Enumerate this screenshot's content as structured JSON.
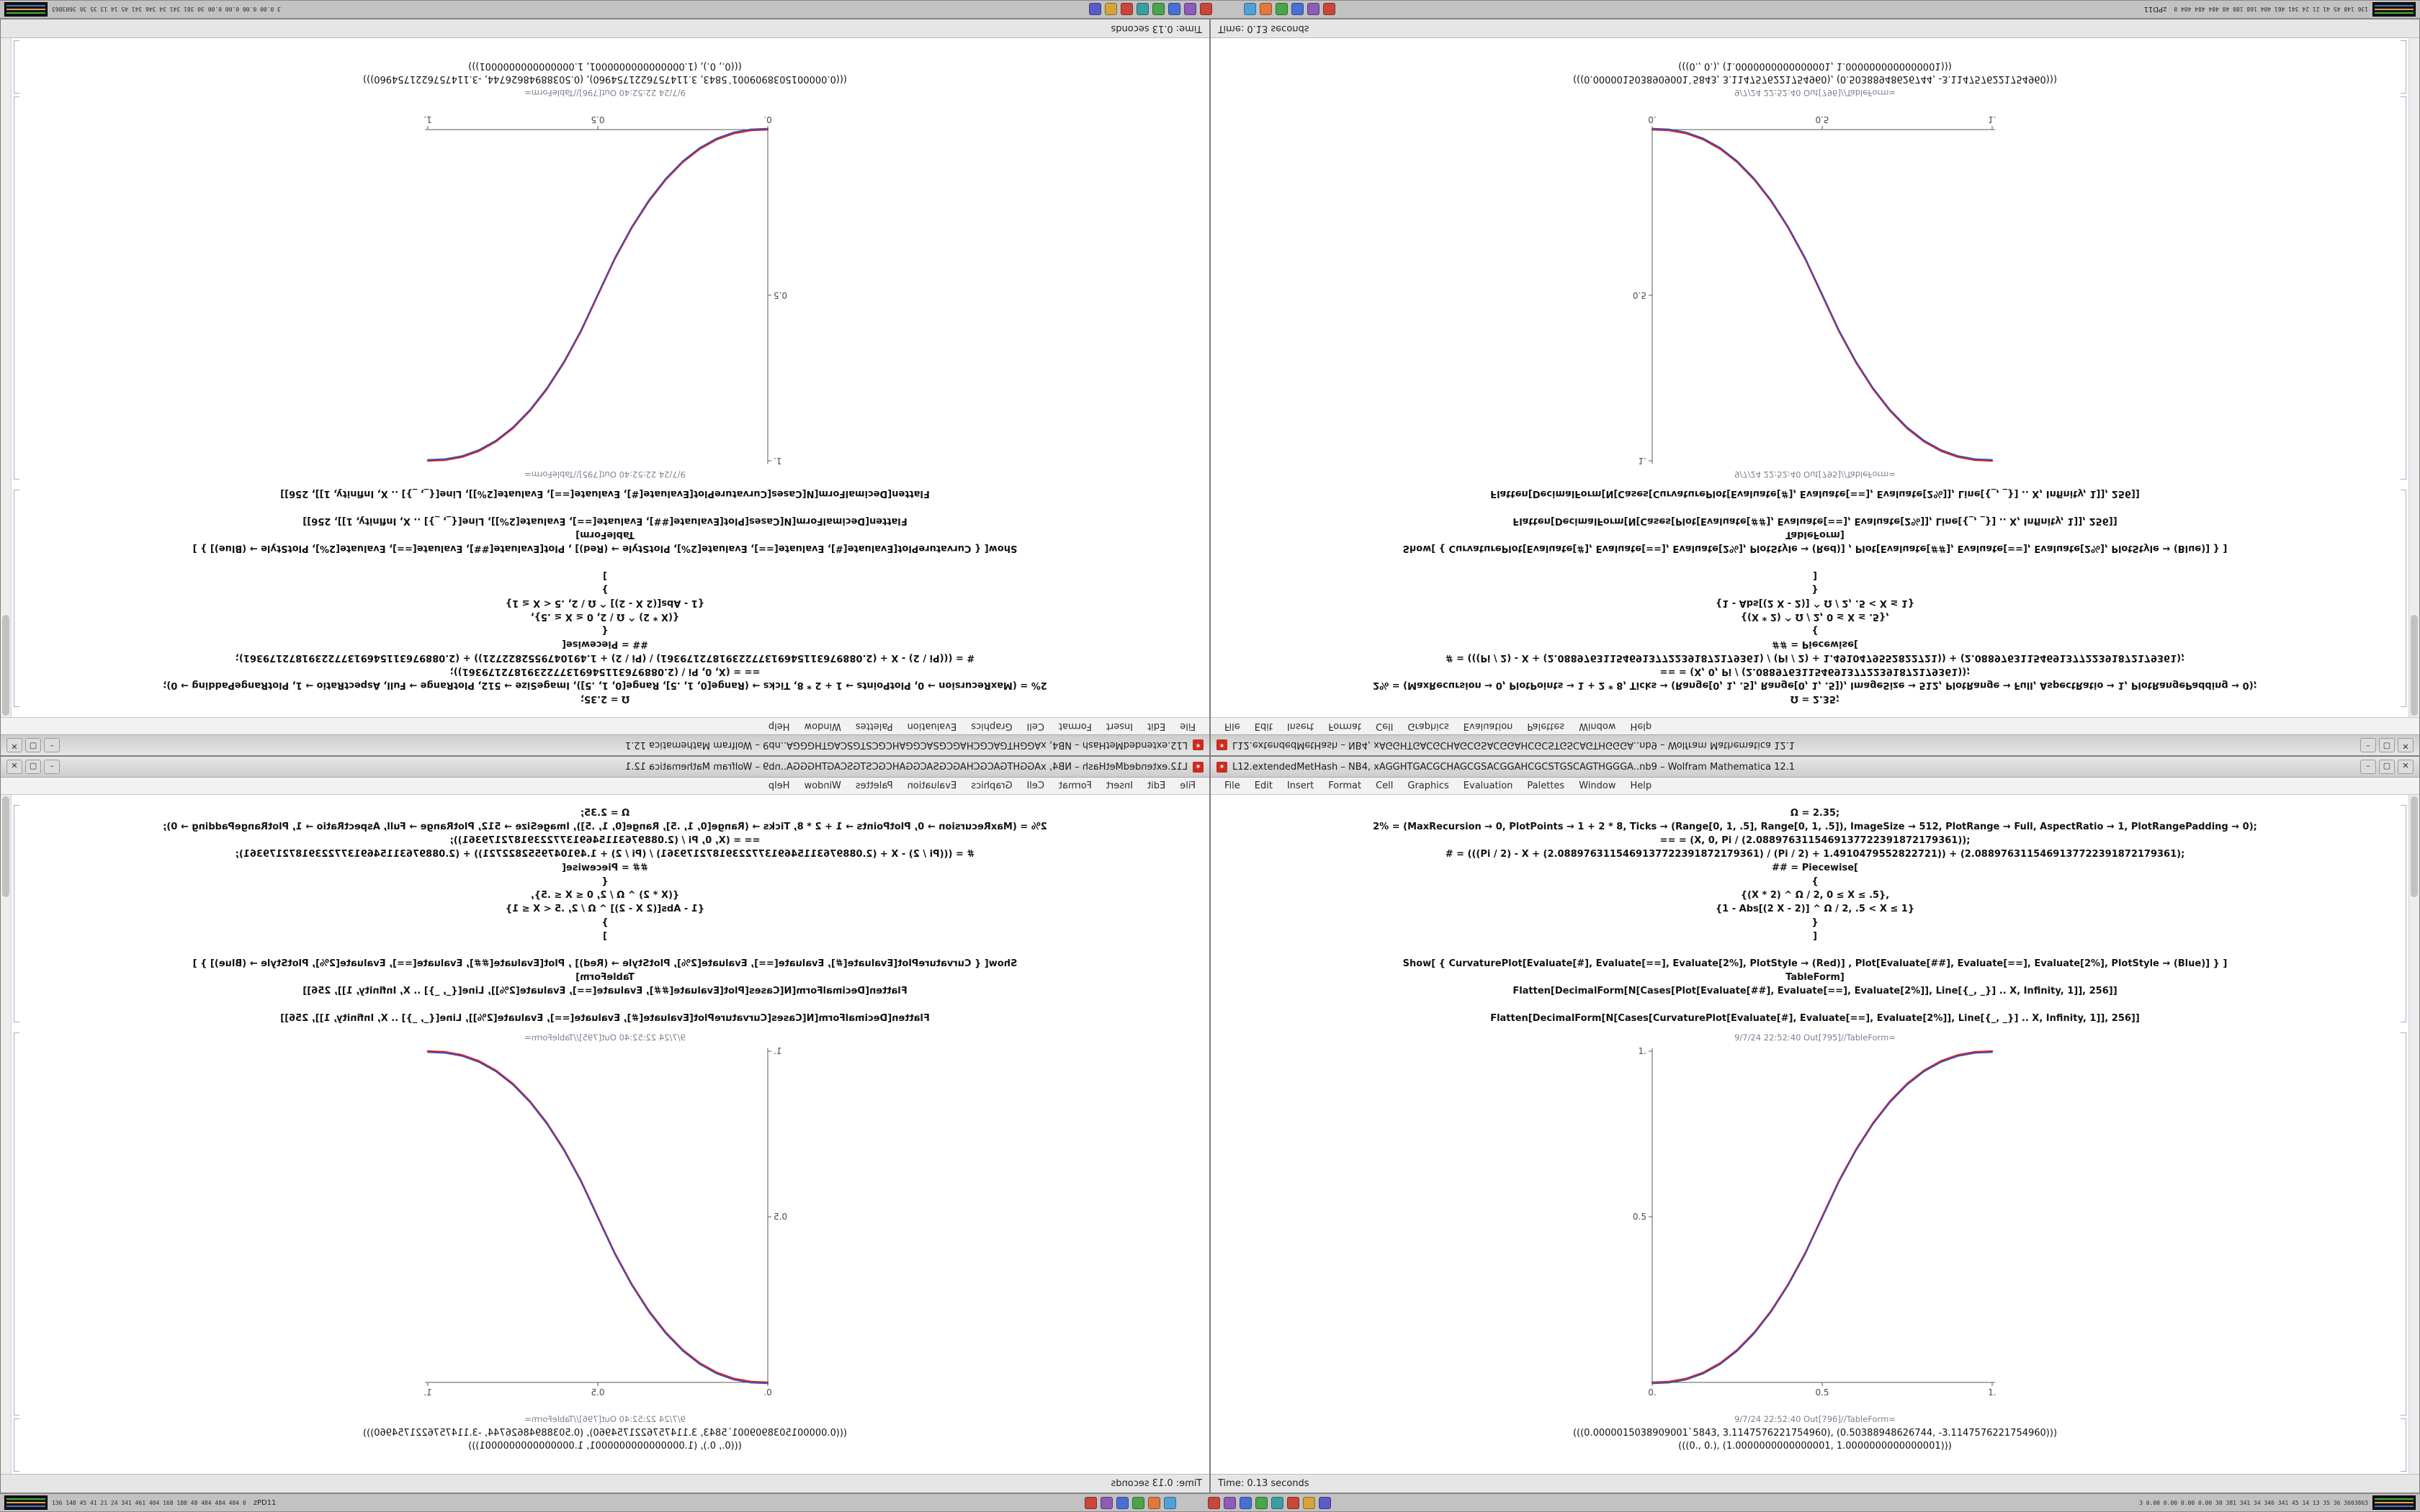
{
  "desktop": {
    "background": "#9a9a9a"
  },
  "taskbar": {
    "background": "#c2c2c2",
    "workspace_label": "zPD11",
    "left_stats": "136 148 45 41 21 24 341 461 404 168 188 48 484 484 484 0",
    "right_stats": "3 0.00 0.00 0.00 0.00 30 381 341 34 346 341 45 14 13 35 36 3603863",
    "app_icons_left": [
      {
        "name": "app-icon-red",
        "color": "#c9463b"
      },
      {
        "name": "app-icon-purple",
        "color": "#8e5bb8"
      },
      {
        "name": "app-icon-blue",
        "color": "#4a6fd4"
      },
      {
        "name": "app-icon-green",
        "color": "#4aa44a"
      },
      {
        "name": "app-icon-orange",
        "color": "#e0783c"
      },
      {
        "name": "app-icon-lightblue",
        "color": "#52a0d8"
      }
    ],
    "app_icons_right": [
      {
        "name": "app-icon-red-2",
        "color": "#c9463b"
      },
      {
        "name": "app-icon-purple-2",
        "color": "#8e5bb8"
      },
      {
        "name": "app-icon-blue-2",
        "color": "#4a6fd4"
      },
      {
        "name": "app-icon-green-2",
        "color": "#4aa44a"
      },
      {
        "name": "app-icon-teal",
        "color": "#3c9ea0"
      },
      {
        "name": "app-icon-red-3",
        "color": "#c9463b"
      },
      {
        "name": "app-icon-yellow",
        "color": "#d4a43c"
      },
      {
        "name": "app-icon-indigo",
        "color": "#5b5bc8"
      }
    ]
  },
  "window": {
    "title": "L12.extendedMetHash – NB4, xAGGHTGACGCHAGCGSACGGAHCGCSTGSCAGTHGGGA..nb9 – Wolfram Mathematica 12.1",
    "controls": {
      "minimize": "–",
      "maximize": "▢",
      "close": "✕"
    },
    "menus": [
      "File",
      "Edit",
      "Insert",
      "Format",
      "Cell",
      "Graphics",
      "Evaluation",
      "Palettes",
      "Window",
      "Help"
    ],
    "status": "Time: 0.13 seconds",
    "cells": {
      "input_lines": [
        "Ω = 2.35;",
        "2% = (MaxRecursion → 0, PlotPoints → 1 + 2 * 8, Ticks → (Range[0, 1, .5], Range[0, 1, .5]), ImageSize → 512, PlotRange → Full, AspectRatio → 1, PlotRangePadding → 0);",
        "== = (X, 0, Pi / (2.0889763115469137722391872179361));",
        "# = (((Pi / 2) - X + (2.0889763115469137722391872179361) / (Pi / 2) + 1.4910479552822721)) + (2.0889763115469137722391872179361);",
        "## = Piecewise[",
        "{",
        "{(X * 2) ^ Ω / 2, 0 ≤ X ≤ .5},",
        "{1 - Abs[(2 X - 2)] ^ Ω / 2, .5 < X ≤ 1}",
        "}",
        "]",
        "",
        "Show[ { CurvaturePlot[Evaluate[#], Evaluate[==], Evaluate[2%], PlotStyle → (Red)] , Plot[Evaluate[##], Evaluate[==], Evaluate[2%], PlotStyle → (Blue)] } ]",
        "TableForm]",
        "Flatten[DecimalForm[N[Cases[Plot[Evaluate[##], Evaluate[==], Evaluate[2%]], Line[{_, _}] .. X, Infinity, 1]], 256]]",
        "",
        "Flatten[DecimalForm[N[Cases[CurvaturePlot[Evaluate[#], Evaluate[==], Evaluate[2%]], Line[{_, _}] .. X, Infinity, 1]], 256]]"
      ],
      "out_label_plot": "9/7/24 22:52:40 Out[795]//TableForm=",
      "out_label_table": "9/7/24 22:52:40 Out[796]//TableForm=",
      "output_lines": [
        "(((0.0000015038909001`5843, 3.1147576221754960), (0.50388948626744, -3.1147576221754960)))",
        "(((0., 0.), (1.0000000000000001, 1.0000000000000001)))"
      ]
    }
  },
  "chart_data": {
    "type": "line",
    "title": "Piecewise sigmoid, CurvaturePlot (Red) overlaid with Plot (Blue)",
    "xlabel": "",
    "ylabel": "",
    "xlim": [
      0,
      1
    ],
    "ylim": [
      0,
      1
    ],
    "grid": false,
    "legend_position": "none",
    "x_ticks": [
      0,
      0.5,
      1
    ],
    "y_ticks": [
      0,
      0.5,
      1
    ],
    "x_tick_labels": [
      "0.",
      "0.5",
      "1."
    ],
    "y_tick_labels": [
      "0.",
      "0.5",
      "1."
    ],
    "x": [
      0,
      0.05,
      0.1,
      0.15,
      0.2,
      0.25,
      0.3,
      0.35,
      0.4,
      0.45,
      0.5,
      0.55,
      0.6,
      0.65,
      0.7,
      0.75,
      0.8,
      0.85,
      0.9,
      0.95,
      1
    ],
    "series": [
      {
        "name": "CurvaturePlot",
        "color": "#d02828",
        "y": [
          0,
          0.0022,
          0.0114,
          0.0295,
          0.058,
          0.098,
          0.1506,
          0.2163,
          0.296,
          0.3903,
          0.5,
          0.6097,
          0.704,
          0.7837,
          0.8494,
          0.902,
          0.942,
          0.9705,
          0.9886,
          0.9978,
          1
        ]
      },
      {
        "name": "Plot",
        "color": "#3050c8",
        "y": [
          0,
          0.0022,
          0.0114,
          0.0295,
          0.058,
          0.098,
          0.1506,
          0.2163,
          0.296,
          0.3903,
          0.5,
          0.6097,
          0.704,
          0.7837,
          0.8494,
          0.902,
          0.942,
          0.9705,
          0.9886,
          0.9978,
          1
        ]
      }
    ]
  },
  "quadrants": [
    {
      "id": "tl",
      "orientation": "rotated-180"
    },
    {
      "id": "tr",
      "orientation": "flipped-vertical"
    },
    {
      "id": "bl",
      "orientation": "mirrored-horizontal"
    },
    {
      "id": "br",
      "orientation": "normal"
    }
  ]
}
